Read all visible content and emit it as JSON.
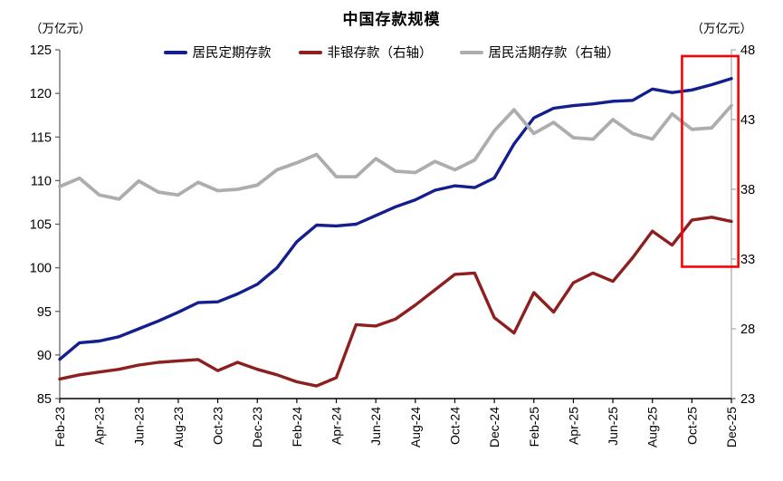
{
  "title": "中国存款规模",
  "left_axis": {
    "unit": "（万亿元）",
    "ticks": [
      125,
      120,
      115,
      110,
      105,
      100,
      95,
      90,
      85
    ],
    "min": 85,
    "max": 125
  },
  "right_axis": {
    "unit": "（万亿元）",
    "ticks": [
      48,
      43,
      38,
      33,
      28,
      23
    ],
    "min": 23,
    "max": 48
  },
  "x_axis": {
    "labels": [
      "Feb-23",
      "Apr-23",
      "Jun-23",
      "Aug-23",
      "Oct-23",
      "Dec-23",
      "Feb-24",
      "Apr-24",
      "Jun-24",
      "Aug-24",
      "Oct-24",
      "Dec-24",
      "Feb-25",
      "Apr-25",
      "Jun-25",
      "Aug-25",
      "Oct-25",
      "Dec-25"
    ],
    "step": 2
  },
  "legend": [
    {
      "label": "居民定期存款",
      "color": "#131E8F"
    },
    {
      "label": "非银存款（右轴）",
      "color": "#8E1F1F"
    },
    {
      "label": "居民活期存款（右轴）",
      "color": "#ADADAD"
    }
  ],
  "highlight_box": {
    "color": "#FF0000",
    "from_month": "Oct-25",
    "to_month": "Dec-25",
    "x1_month_index": 31.5,
    "x2_month_index": 34.35,
    "y_top_right_value": 47.55,
    "y_bottom_right_value": 32.45
  },
  "chart_data": {
    "type": "line",
    "x": [
      "Feb-23",
      "Mar-23",
      "Apr-23",
      "May-23",
      "Jun-23",
      "Jul-23",
      "Aug-23",
      "Sep-23",
      "Oct-23",
      "Nov-23",
      "Dec-23",
      "Jan-24",
      "Feb-24",
      "Mar-24",
      "Apr-24",
      "May-24",
      "Jun-24",
      "Jul-24",
      "Aug-24",
      "Sep-24",
      "Oct-24",
      "Nov-24",
      "Dec-24",
      "Jan-25",
      "Feb-25",
      "Mar-25",
      "Apr-25",
      "May-25",
      "Jun-25",
      "Jul-25",
      "Aug-25",
      "Sep-25",
      "Oct-25",
      "Nov-25",
      "Dec-25"
    ],
    "ylim_left": [
      85,
      125
    ],
    "ylim_right": [
      23,
      48
    ],
    "grid": false,
    "legend_position": "top",
    "series": [
      {
        "name": "居民定期存款",
        "axis": "left",
        "color": "#131E8F",
        "width": 3.4,
        "values": [
          89.5,
          91.4,
          91.6,
          92.1,
          93.0,
          93.9,
          94.9,
          96.0,
          96.1,
          97.0,
          98.1,
          100.0,
          103.0,
          104.9,
          104.8,
          105.0,
          106.0,
          107.0,
          107.8,
          108.9,
          109.4,
          109.2,
          110.3,
          114.2,
          117.2,
          118.3,
          118.6,
          118.8,
          119.1,
          119.2,
          120.5,
          120.1,
          120.4,
          121.0,
          121.7
        ]
      },
      {
        "name": "非银存款（右轴）",
        "axis": "right",
        "color": "#8E1F1F",
        "width": 3.4,
        "values": [
          24.4,
          24.7,
          24.9,
          25.1,
          25.4,
          25.6,
          25.7,
          25.8,
          25.0,
          25.6,
          25.1,
          24.7,
          24.2,
          23.9,
          24.5,
          28.3,
          28.2,
          28.7,
          29.7,
          30.8,
          31.9,
          32.0,
          28.8,
          27.7,
          30.6,
          29.2,
          31.3,
          32.0,
          31.4,
          33.1,
          35.0,
          34.0,
          35.8,
          36.0,
          35.7
        ]
      },
      {
        "name": "居民活期存款（右轴）",
        "axis": "right",
        "color": "#ADADAD",
        "width": 3.8,
        "values": [
          38.2,
          38.8,
          37.6,
          37.3,
          38.6,
          37.8,
          37.6,
          38.5,
          37.9,
          38.0,
          38.3,
          39.4,
          39.9,
          40.5,
          38.9,
          38.9,
          40.2,
          39.3,
          39.2,
          40.0,
          39.4,
          40.1,
          42.2,
          43.7,
          42.0,
          42.8,
          41.7,
          41.6,
          43.0,
          42.0,
          41.6,
          43.4,
          42.3,
          42.4,
          44.0
        ]
      }
    ]
  }
}
